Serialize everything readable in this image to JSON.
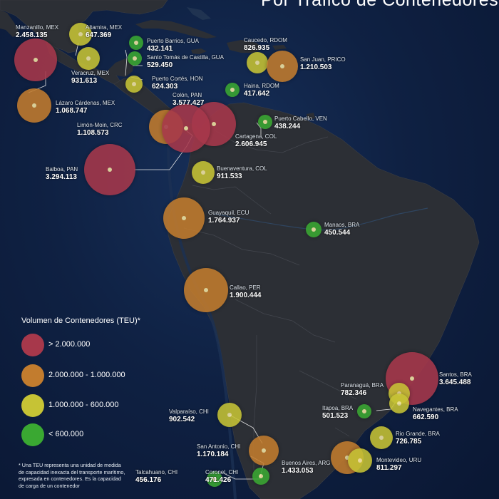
{
  "title": "Por Tráfico de Contenedores",
  "legend": {
    "title": "Volumen de Contenedores (TEU)*",
    "items": [
      {
        "label": "> 2.000.000",
        "color": "#a7384b"
      },
      {
        "label": "2.000.000 - 1.000.000",
        "color": "#c27c2e"
      },
      {
        "label": "1.000.000 - 600.000",
        "color": "#c6c335"
      },
      {
        "label": "< 600.000",
        "color": "#3aa832"
      }
    ]
  },
  "footnote": "* Una TEU representa una unidad de medida de capacidad inexacta del transporte marítimo, expresada en contenedores. Es la capacidad de carga de un contenedor",
  "colors": {
    "red": "#a7384b",
    "orange": "#c27c2e",
    "yellow": "#c6c335",
    "green": "#3aa832"
  },
  "ports": [
    {
      "name": "Manzanillo, MEX",
      "value": "2.458.135",
      "color": "red"
    },
    {
      "name": "Altamira, MEX",
      "value": "647.369",
      "color": "yellow"
    },
    {
      "name": "Veracruz, MEX",
      "value": "931.613",
      "color": "yellow"
    },
    {
      "name": "Lázaro Cárdenas, MEX",
      "value": "1.068.747",
      "color": "orange"
    },
    {
      "name": "Puerto Barrios, GUA",
      "value": "432.141",
      "color": "green"
    },
    {
      "name": "Santo Tomás de Castilla, GUA",
      "value": "529.450",
      "color": "green"
    },
    {
      "name": "Puerto Cortés, HON",
      "value": "624.303",
      "color": "yellow"
    },
    {
      "name": "Caucedo, RDOM",
      "value": "826.935",
      "color": "yellow"
    },
    {
      "name": "San Juan, PRICO",
      "value": "1.210.503",
      "color": "orange"
    },
    {
      "name": "Haina, RDOM",
      "value": "417.642",
      "color": "green"
    },
    {
      "name": "Colón, PAN",
      "value": "3.577.427",
      "color": "red"
    },
    {
      "name": "Limón-Moin, CRC",
      "value": "1.108.573",
      "color": "orange"
    },
    {
      "name": "Puerto Cabello, VEN",
      "value": "438.244",
      "color": "green"
    },
    {
      "name": "Cartagena, COL",
      "value": "2.606.945",
      "color": "red"
    },
    {
      "name": "Balboa, PAN",
      "value": "3.294.113",
      "color": "red"
    },
    {
      "name": "Buenaventura, COL",
      "value": "911.533",
      "color": "yellow"
    },
    {
      "name": "Guayaquil, ECU",
      "value": "1.764.937",
      "color": "orange"
    },
    {
      "name": "Manaos, BRA",
      "value": "450.544",
      "color": "green"
    },
    {
      "name": "Callao, PER",
      "value": "1.900.444",
      "color": "orange"
    },
    {
      "name": "Santos, BRA",
      "value": "3.645.488",
      "color": "red"
    },
    {
      "name": "Paranaguá, BRA",
      "value": "782.346",
      "color": "yellow"
    },
    {
      "name": "Navegantes, BRA",
      "value": "662.590",
      "color": "yellow"
    },
    {
      "name": "Itapoa, BRA",
      "value": "501.523",
      "color": "green"
    },
    {
      "name": "Rio Grande, BRA",
      "value": "726.785",
      "color": "yellow"
    },
    {
      "name": "Valparaíso, CHI",
      "value": "902.542",
      "color": "yellow"
    },
    {
      "name": "San Antonio, CHI",
      "value": "1.170.184",
      "color": "orange"
    },
    {
      "name": "Buenos Aires, ARG",
      "value": "1.433.053",
      "color": "orange"
    },
    {
      "name": "Montevideo, URU",
      "value": "811.297",
      "color": "yellow"
    },
    {
      "name": "Talcahuano, CHI",
      "value": "456.176",
      "color": "green"
    },
    {
      "name": "Coronel, CHI",
      "value": "471.426",
      "color": "green"
    }
  ]
}
